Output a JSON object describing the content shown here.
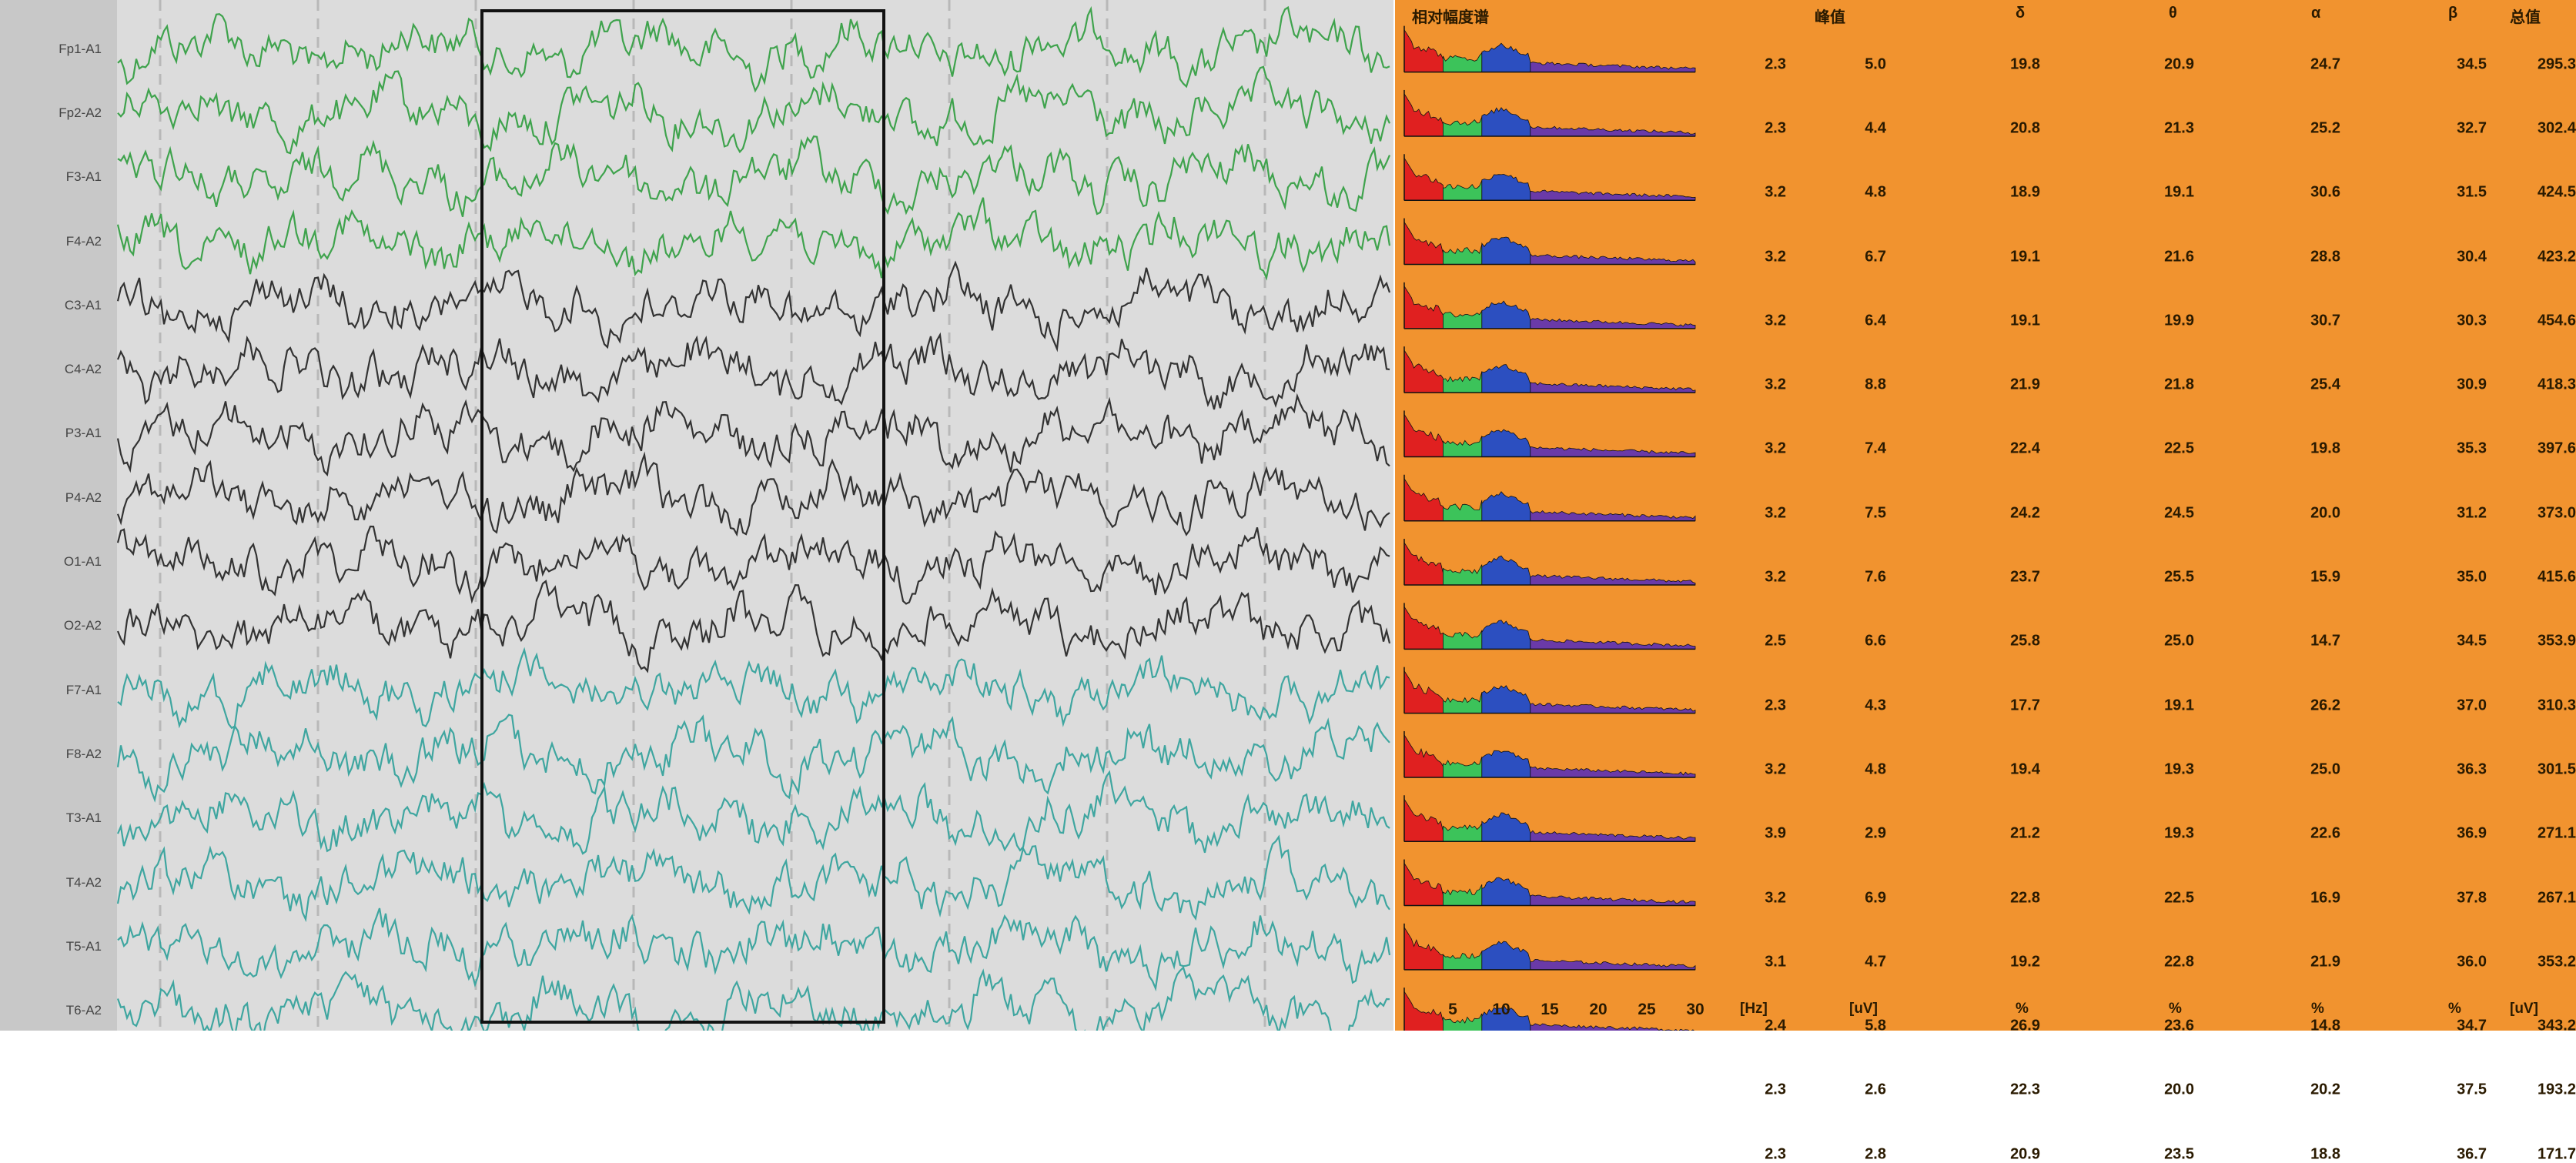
{
  "chart_data": {
    "type": "table",
    "eeg": {
      "channels": [
        "Fp1-A1",
        "Fp2-A2",
        "F3-A1",
        "F4-A2",
        "C3-A1",
        "C4-A2",
        "P3-A1",
        "P4-A2",
        "O1-A1",
        "O2-A2",
        "F7-A1",
        "F8-A2",
        "T3-A1",
        "T4-A2",
        "T5-A1",
        "T6-A2"
      ],
      "trace_colors": [
        "#3fa34d",
        "#3fa34d",
        "#3fa34d",
        "#3fa34d",
        "#333333",
        "#333333",
        "#333333",
        "#333333",
        "#333333",
        "#333333",
        "#3fa6a0",
        "#3fa6a0",
        "#3fa6a0",
        "#3fa6a0",
        "#3fa6a0",
        "#3fa6a0"
      ]
    },
    "spectrum": {
      "title": "相对幅度谱",
      "x_ticks": [
        "5",
        "10",
        "15",
        "20",
        "25",
        "30"
      ],
      "x_unit": "[Hz]",
      "xlim": [
        0,
        30
      ],
      "band_colors": {
        "delta": "#e02020",
        "theta": "#3cc35a",
        "alpha": "#2c4fc0",
        "beta": "#6a3aa8"
      }
    },
    "table": {
      "headers": [
        "峰值",
        "δ",
        "θ",
        "α",
        "β",
        "总值"
      ],
      "units": [
        "[uV]",
        "%",
        "%",
        "%",
        "%",
        "[uV]"
      ],
      "rows": [
        {
          "channel": "Fp1-A1",
          "freq": "2.3",
          "peak": "5.0",
          "delta": "19.8",
          "theta": "20.9",
          "alpha": "24.7",
          "beta": "34.5",
          "total": "295.3"
        },
        {
          "channel": "Fp2-A2",
          "freq": "2.3",
          "peak": "4.4",
          "delta": "20.8",
          "theta": "21.3",
          "alpha": "25.2",
          "beta": "32.7",
          "total": "302.4"
        },
        {
          "channel": "F3-A1",
          "freq": "3.2",
          "peak": "4.8",
          "delta": "18.9",
          "theta": "19.1",
          "alpha": "30.6",
          "beta": "31.5",
          "total": "424.5"
        },
        {
          "channel": "F4-A2",
          "freq": "3.2",
          "peak": "6.7",
          "delta": "19.1",
          "theta": "21.6",
          "alpha": "28.8",
          "beta": "30.4",
          "total": "423.2"
        },
        {
          "channel": "C3-A1",
          "freq": "3.2",
          "peak": "6.4",
          "delta": "19.1",
          "theta": "19.9",
          "alpha": "30.7",
          "beta": "30.3",
          "total": "454.6"
        },
        {
          "channel": "C4-A2",
          "freq": "3.2",
          "peak": "8.8",
          "delta": "21.9",
          "theta": "21.8",
          "alpha": "25.4",
          "beta": "30.9",
          "total": "418.3"
        },
        {
          "channel": "P3-A1",
          "freq": "3.2",
          "peak": "7.4",
          "delta": "22.4",
          "theta": "22.5",
          "alpha": "19.8",
          "beta": "35.3",
          "total": "397.6"
        },
        {
          "channel": "P4-A2",
          "freq": "3.2",
          "peak": "7.5",
          "delta": "24.2",
          "theta": "24.5",
          "alpha": "20.0",
          "beta": "31.2",
          "total": "373.0"
        },
        {
          "channel": "O1-A1",
          "freq": "3.2",
          "peak": "7.6",
          "delta": "23.7",
          "theta": "25.5",
          "alpha": "15.9",
          "beta": "35.0",
          "total": "415.6"
        },
        {
          "channel": "O2-A2",
          "freq": "2.5",
          "peak": "6.6",
          "delta": "25.8",
          "theta": "25.0",
          "alpha": "14.7",
          "beta": "34.5",
          "total": "353.9"
        },
        {
          "channel": "F7-A1",
          "freq": "2.3",
          "peak": "4.3",
          "delta": "17.7",
          "theta": "19.1",
          "alpha": "26.2",
          "beta": "37.0",
          "total": "310.3"
        },
        {
          "channel": "F8-A2",
          "freq": "3.2",
          "peak": "4.8",
          "delta": "19.4",
          "theta": "19.3",
          "alpha": "25.0",
          "beta": "36.3",
          "total": "301.5"
        },
        {
          "channel": "T3-A1",
          "freq": "3.9",
          "peak": "2.9",
          "delta": "21.2",
          "theta": "19.3",
          "alpha": "22.6",
          "beta": "36.9",
          "total": "271.1"
        },
        {
          "channel": "T4-A2",
          "freq": "3.2",
          "peak": "6.9",
          "delta": "22.8",
          "theta": "22.5",
          "alpha": "16.9",
          "beta": "37.8",
          "total": "267.1"
        },
        {
          "channel": "T5-A1",
          "freq": "3.1",
          "peak": "4.7",
          "delta": "19.2",
          "theta": "22.8",
          "alpha": "21.9",
          "beta": "36.0",
          "total": "353.2"
        },
        {
          "channel": "T6-A2",
          "freq": "2.4",
          "peak": "5.8",
          "delta": "26.9",
          "theta": "23.6",
          "alpha": "14.8",
          "beta": "34.7",
          "total": "343.2"
        },
        {
          "channel": "",
          "freq": "2.3",
          "peak": "2.6",
          "delta": "22.3",
          "theta": "20.0",
          "alpha": "20.2",
          "beta": "37.5",
          "total": "193.2"
        },
        {
          "channel": "",
          "freq": "2.3",
          "peak": "2.8",
          "delta": "20.9",
          "theta": "23.5",
          "alpha": "18.8",
          "beta": "36.7",
          "total": "171.7"
        }
      ]
    }
  }
}
